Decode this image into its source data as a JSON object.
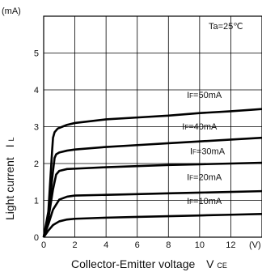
{
  "chart_data": {
    "type": "line",
    "title": "",
    "header_top_center": "",
    "annotation": "Ta=25℃",
    "xlabel": "Collector-Emitter voltage",
    "xlabel_symbol": "V",
    "xlabel_symbol_sub": "CE",
    "ylabel": "Light current",
    "ylabel_symbol": "I",
    "ylabel_symbol_sub": "L",
    "yunit": "(mA)",
    "xunit": "(V)",
    "xlim": [
      0,
      14
    ],
    "ylim": [
      0,
      6
    ],
    "xticks": [
      0,
      2,
      4,
      6,
      8,
      10,
      12
    ],
    "yticks": [
      0,
      1,
      2,
      3,
      4,
      5
    ],
    "grid": true,
    "series": [
      {
        "name": "IF=10mA",
        "label_main": "I",
        "label_sub": "F",
        "label_tail": "=10mA",
        "x": [
          0,
          0.3,
          0.6,
          1.0,
          1.5,
          2,
          4,
          6,
          8,
          10,
          12,
          14
        ],
        "y": [
          0,
          0.18,
          0.33,
          0.43,
          0.48,
          0.5,
          0.53,
          0.55,
          0.57,
          0.59,
          0.61,
          0.63
        ]
      },
      {
        "name": "IF=20mA",
        "label_main": "I",
        "label_sub": "F",
        "label_tail": "=20mA",
        "x": [
          0,
          0.3,
          0.6,
          1.0,
          1.5,
          2,
          4,
          6,
          8,
          10,
          12,
          14
        ],
        "y": [
          0,
          0.35,
          0.75,
          1.02,
          1.1,
          1.13,
          1.15,
          1.17,
          1.19,
          1.21,
          1.23,
          1.25
        ]
      },
      {
        "name": "IF=30mA",
        "label_main": "I",
        "label_sub": "F",
        "label_tail": "=30mA",
        "x": [
          0,
          0.3,
          0.6,
          0.8,
          1.0,
          1.5,
          2,
          4,
          6,
          8,
          10,
          12,
          14
        ],
        "y": [
          0,
          0.5,
          1.3,
          1.7,
          1.8,
          1.85,
          1.86,
          1.9,
          1.93,
          1.96,
          1.98,
          2.0,
          2.02
        ]
      },
      {
        "name": "IF=40mA",
        "label_main": "I",
        "label_sub": "F",
        "label_tail": "=40mA",
        "x": [
          0,
          0.3,
          0.6,
          0.7,
          0.8,
          1.0,
          1.5,
          2,
          4,
          6,
          8,
          10,
          12,
          14
        ],
        "y": [
          0,
          0.6,
          1.8,
          2.15,
          2.25,
          2.3,
          2.35,
          2.38,
          2.45,
          2.5,
          2.55,
          2.6,
          2.65,
          2.7
        ]
      },
      {
        "name": "IF=50mA",
        "label_main": "I",
        "label_sub": "F",
        "label_tail": "=50mA",
        "x": [
          0,
          0.3,
          0.55,
          0.6,
          0.7,
          0.9,
          1.2,
          1.5,
          2,
          4,
          6,
          8,
          10,
          12,
          14
        ],
        "y": [
          0,
          0.7,
          2.4,
          2.7,
          2.85,
          2.95,
          3.0,
          3.05,
          3.1,
          3.2,
          3.25,
          3.3,
          3.37,
          3.42,
          3.48
        ]
      }
    ]
  }
}
